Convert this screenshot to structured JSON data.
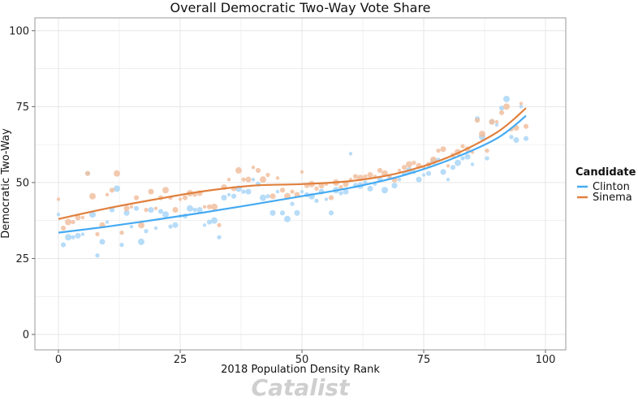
{
  "colors": {
    "clinton": "#45aaf2",
    "clinton_point": "#aad6f7",
    "sinema": "#e0803e",
    "sinema_point": "#f1bfa0",
    "grid": "#e6e6e6",
    "panel_border": "#999999"
  },
  "watermark": "Catalist",
  "chart_data": {
    "type": "scatter",
    "title": "Overall Democratic Two-Way Vote Share",
    "xlabel": "2018 Population Density Rank",
    "ylabel": "Democratic Two-Way",
    "xlim": [
      -5,
      104
    ],
    "ylim": [
      -5,
      105
    ],
    "x_ticks": [
      0,
      25,
      50,
      75,
      100
    ],
    "y_ticks": [
      0,
      25,
      50,
      75,
      100
    ],
    "grid": true,
    "legend": {
      "title": "Candidate",
      "position": "right",
      "entries": [
        "Clinton",
        "Sinema"
      ]
    },
    "series": [
      {
        "name": "Clinton",
        "points": [
          [
            0,
            39.5
          ],
          [
            1,
            29.5
          ],
          [
            2,
            32
          ],
          [
            3,
            32
          ],
          [
            4,
            32.5
          ],
          [
            5,
            33
          ],
          [
            6,
            53
          ],
          [
            7,
            39.5
          ],
          [
            8,
            26
          ],
          [
            9,
            30.5
          ],
          [
            10,
            37
          ],
          [
            11,
            41
          ],
          [
            12,
            48
          ],
          [
            13,
            29.5
          ],
          [
            14,
            40
          ],
          [
            15,
            35.5
          ],
          [
            16,
            41.5
          ],
          [
            17,
            30.5
          ],
          [
            18,
            34
          ],
          [
            19,
            41
          ],
          [
            20,
            35
          ],
          [
            21,
            40.5
          ],
          [
            22,
            39.5
          ],
          [
            23,
            35.5
          ],
          [
            24,
            36
          ],
          [
            25,
            39
          ],
          [
            26,
            39
          ],
          [
            27,
            41.5
          ],
          [
            28,
            41
          ],
          [
            29,
            41
          ],
          [
            30,
            36
          ],
          [
            31,
            37
          ],
          [
            32,
            37.5
          ],
          [
            33,
            32
          ],
          [
            34,
            45
          ],
          [
            35,
            46
          ],
          [
            36,
            45.5
          ],
          [
            37,
            48
          ],
          [
            38,
            47
          ],
          [
            39,
            47
          ],
          [
            40,
            51
          ],
          [
            41,
            49.5
          ],
          [
            42,
            45
          ],
          [
            43,
            45.5
          ],
          [
            44,
            40
          ],
          [
            45,
            47
          ],
          [
            46,
            40
          ],
          [
            47,
            38
          ],
          [
            48,
            43
          ],
          [
            49,
            40
          ],
          [
            50,
            47
          ],
          [
            51,
            46
          ],
          [
            52,
            45.5
          ],
          [
            53,
            44
          ],
          [
            54,
            47
          ],
          [
            55,
            44.5
          ],
          [
            56,
            40
          ],
          [
            57,
            47.5
          ],
          [
            58,
            46.5
          ],
          [
            59,
            47
          ],
          [
            60,
            59.5
          ],
          [
            61,
            49
          ],
          [
            62,
            49
          ],
          [
            63,
            50
          ],
          [
            64,
            48
          ],
          [
            65,
            49.5
          ],
          [
            66,
            51
          ],
          [
            67,
            47.5
          ],
          [
            68,
            52
          ],
          [
            69,
            49
          ],
          [
            70,
            51
          ],
          [
            71,
            53
          ],
          [
            72,
            54
          ],
          [
            73,
            53.5
          ],
          [
            74,
            51
          ],
          [
            75,
            52.5
          ],
          [
            76,
            53
          ],
          [
            77,
            57
          ],
          [
            78,
            57.5
          ],
          [
            79,
            53.5
          ],
          [
            80,
            51
          ],
          [
            81,
            55
          ],
          [
            82,
            56.5
          ],
          [
            83,
            58
          ],
          [
            84,
            58.5
          ],
          [
            85,
            56
          ],
          [
            86,
            71
          ],
          [
            87,
            65
          ],
          [
            88,
            58
          ],
          [
            89,
            70
          ],
          [
            90,
            69
          ],
          [
            91,
            74.5
          ],
          [
            92,
            77.5
          ],
          [
            93,
            65
          ],
          [
            94,
            64
          ],
          [
            95,
            75
          ],
          [
            96,
            64.5
          ]
        ]
      },
      {
        "name": "Sinema",
        "points": [
          [
            0,
            44.5
          ],
          [
            1,
            35
          ],
          [
            2,
            37
          ],
          [
            3,
            37
          ],
          [
            4,
            38.5
          ],
          [
            5,
            38.5
          ],
          [
            6,
            53
          ],
          [
            7,
            45.5
          ],
          [
            8,
            33
          ],
          [
            9,
            36
          ],
          [
            10,
            46
          ],
          [
            11,
            47.5
          ],
          [
            12,
            53
          ],
          [
            13,
            33.5
          ],
          [
            14,
            41.5
          ],
          [
            15,
            42
          ],
          [
            16,
            45
          ],
          [
            17,
            36
          ],
          [
            18,
            41
          ],
          [
            19,
            47
          ],
          [
            20,
            41.5
          ],
          [
            21,
            45
          ],
          [
            22,
            47.5
          ],
          [
            23,
            45
          ],
          [
            24,
            41
          ],
          [
            25,
            44.5
          ],
          [
            26,
            45
          ],
          [
            27,
            46.5
          ],
          [
            28,
            46
          ],
          [
            29,
            46.5
          ],
          [
            30,
            42
          ],
          [
            31,
            42
          ],
          [
            32,
            42
          ],
          [
            33,
            36
          ],
          [
            34,
            48.5
          ],
          [
            35,
            51
          ],
          [
            36,
            48
          ],
          [
            37,
            54
          ],
          [
            38,
            51
          ],
          [
            39,
            51
          ],
          [
            40,
            55
          ],
          [
            41,
            54
          ],
          [
            42,
            51
          ],
          [
            43,
            52.5
          ],
          [
            44,
            45.5
          ],
          [
            45,
            51.5
          ],
          [
            46,
            47.5
          ],
          [
            47,
            45.5
          ],
          [
            48,
            47
          ],
          [
            49,
            46
          ],
          [
            50,
            53.5
          ],
          [
            51,
            49
          ],
          [
            52,
            49.5
          ],
          [
            53,
            48
          ],
          [
            54,
            49
          ],
          [
            55,
            49.5
          ],
          [
            56,
            45
          ],
          [
            57,
            50
          ],
          [
            58,
            48.5
          ],
          [
            59,
            49.5
          ],
          [
            60,
            51
          ],
          [
            61,
            52
          ],
          [
            62,
            51.5
          ],
          [
            63,
            52
          ],
          [
            64,
            52.5
          ],
          [
            65,
            52
          ],
          [
            66,
            54
          ],
          [
            67,
            53
          ],
          [
            68,
            51.5
          ],
          [
            69,
            51
          ],
          [
            70,
            54
          ],
          [
            71,
            55
          ],
          [
            72,
            56
          ],
          [
            73,
            56.5
          ],
          [
            74,
            55.5
          ],
          [
            75,
            55
          ],
          [
            76,
            56
          ],
          [
            77,
            57.5
          ],
          [
            78,
            60.5
          ],
          [
            79,
            61
          ],
          [
            80,
            55.5
          ],
          [
            81,
            59
          ],
          [
            82,
            60
          ],
          [
            83,
            62
          ],
          [
            84,
            61
          ],
          [
            85,
            60
          ],
          [
            86,
            70.5
          ],
          [
            87,
            66
          ],
          [
            88,
            60.5
          ],
          [
            89,
            70
          ],
          [
            90,
            70
          ],
          [
            91,
            73
          ],
          [
            92,
            75
          ],
          [
            93,
            67.5
          ],
          [
            94,
            68
          ],
          [
            95,
            76
          ],
          [
            96,
            68.5
          ]
        ]
      }
    ],
    "trend_lines": [
      {
        "name": "Clinton",
        "x": [
          0,
          10,
          20,
          30,
          40,
          50,
          60,
          70,
          80,
          90,
          96
        ],
        "y": [
          33.5,
          35.5,
          37.8,
          40.2,
          42.8,
          45.5,
          48.3,
          52,
          57.3,
          64.5,
          72
        ]
      },
      {
        "name": "Sinema",
        "x": [
          0,
          10,
          20,
          30,
          40,
          50,
          60,
          70,
          80,
          90,
          96
        ],
        "y": [
          38,
          41.5,
          44.5,
          47.2,
          49,
          49.5,
          50.5,
          53.2,
          58.3,
          66.5,
          74.5
        ]
      }
    ]
  }
}
